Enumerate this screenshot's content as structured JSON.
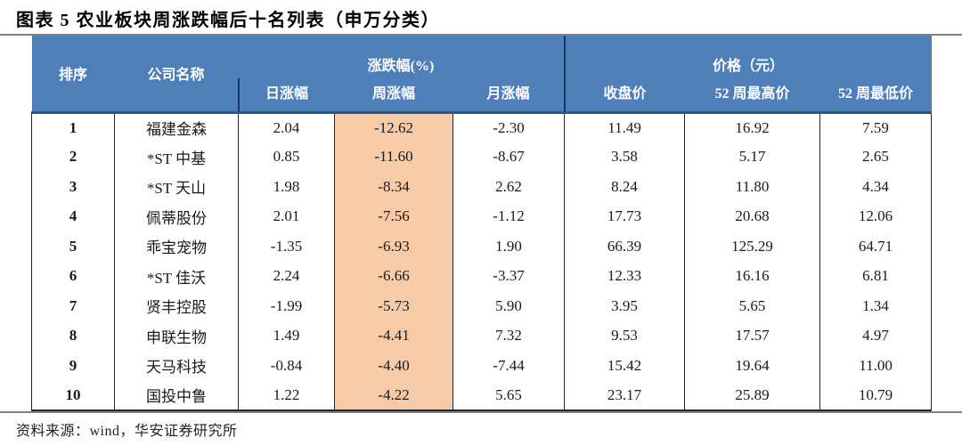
{
  "page": {
    "title": "图表 5 农业板块周涨跌幅后十名列表（申万分类）",
    "source": "资料来源：wind，华安证券研究所"
  },
  "colors": {
    "header-bg": "#4E7FB8",
    "header-border": "#17365D",
    "highlight": "#F7CBA8",
    "grid-line": "#262626",
    "rule": "#828282"
  },
  "table": {
    "header": {
      "rank": "排序",
      "company": "公司名称",
      "change_group": "涨跌幅(%)",
      "price_group": "价格（元）",
      "daily": "日涨幅",
      "weekly": "周涨幅",
      "monthly": "月涨幅",
      "close": "收盘价",
      "high52": "52 周最高价",
      "low52": "52 周最低价"
    },
    "rows": [
      [
        "1",
        "福建金森",
        "2.04",
        "-12.62",
        "-2.30",
        "11.49",
        "16.92",
        "7.59"
      ],
      [
        "2",
        "*ST 中基",
        "0.85",
        "-11.60",
        "-8.67",
        "3.58",
        "5.17",
        "2.65"
      ],
      [
        "3",
        "*ST 天山",
        "1.98",
        "-8.34",
        "2.62",
        "8.24",
        "11.80",
        "4.34"
      ],
      [
        "4",
        "佩蒂股份",
        "2.01",
        "-7.56",
        "-1.12",
        "17.73",
        "20.68",
        "12.06"
      ],
      [
        "5",
        "乖宝宠物",
        "-1.35",
        "-6.93",
        "1.90",
        "66.39",
        "125.29",
        "64.71"
      ],
      [
        "6",
        "*ST 佳沃",
        "2.24",
        "-6.66",
        "-3.37",
        "12.33",
        "16.16",
        "6.81"
      ],
      [
        "7",
        "贤丰控股",
        "-1.99",
        "-5.73",
        "5.90",
        "3.95",
        "5.65",
        "1.34"
      ],
      [
        "8",
        "申联生物",
        "1.49",
        "-4.41",
        "7.32",
        "9.53",
        "17.57",
        "4.97"
      ],
      [
        "9",
        "天马科技",
        "-0.84",
        "-4.40",
        "-7.44",
        "15.42",
        "19.64",
        "11.00"
      ],
      [
        "10",
        "国投中鲁",
        "1.22",
        "-4.22",
        "5.65",
        "23.17",
        "25.89",
        "10.79"
      ]
    ],
    "cell_names": [
      "rank-cell",
      "company-name-cell",
      "daily-change-cell",
      "weekly-change-cell",
      "monthly-change-cell",
      "close-price-cell",
      "high-52w-price-cell",
      "low-52w-price-cell"
    ]
  }
}
